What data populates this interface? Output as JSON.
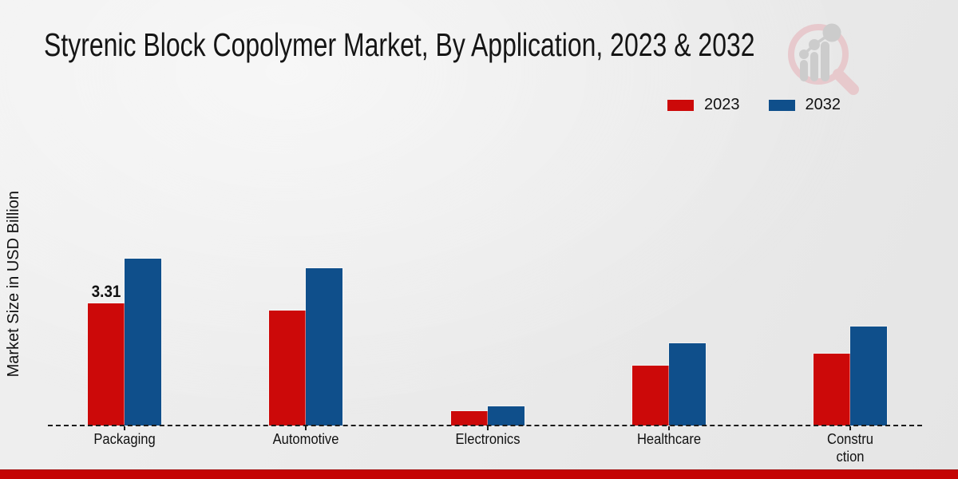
{
  "title": "Styrenic Block Copolymer Market, By Application, 2023 & 2032",
  "y_axis_label": "Market Size in USD Billion",
  "legend": {
    "position": "top-right",
    "items": [
      {
        "label": "2023",
        "color": "#cc0909"
      },
      {
        "label": "2032",
        "color": "#0f4f8b"
      }
    ]
  },
  "chart_data": {
    "type": "bar",
    "title": "Styrenic Block Copolymer Market, By Application, 2023 & 2032",
    "xlabel": "",
    "ylabel": "Market Size in USD Billion",
    "categories": [
      "Packaging",
      "Automotive",
      "Electronics",
      "Healthcare",
      "Construction"
    ],
    "category_display": [
      "Packaging",
      "Automotive",
      "Electronics",
      "Healthcare",
      "Constru\nction"
    ],
    "series": [
      {
        "name": "2023",
        "color": "#cc0909",
        "values": [
          3.31,
          3.12,
          0.39,
          1.62,
          1.95
        ]
      },
      {
        "name": "2032",
        "color": "#0f4f8b",
        "values": [
          4.53,
          4.26,
          0.53,
          2.23,
          2.68
        ]
      }
    ],
    "bar_labels": [
      {
        "series": "2023",
        "category": "Packaging",
        "text": "3.31"
      }
    ],
    "ylim": [
      0,
      5
    ],
    "grid": false,
    "legend_position": "top-right"
  },
  "branding": {
    "logo_icon": "magnifier-bar-chart-watermark",
    "bottom_bar_color": "#c40404",
    "logo_ring_color": "#e7c6ca",
    "logo_glyph_color": "#c9c9c9"
  }
}
